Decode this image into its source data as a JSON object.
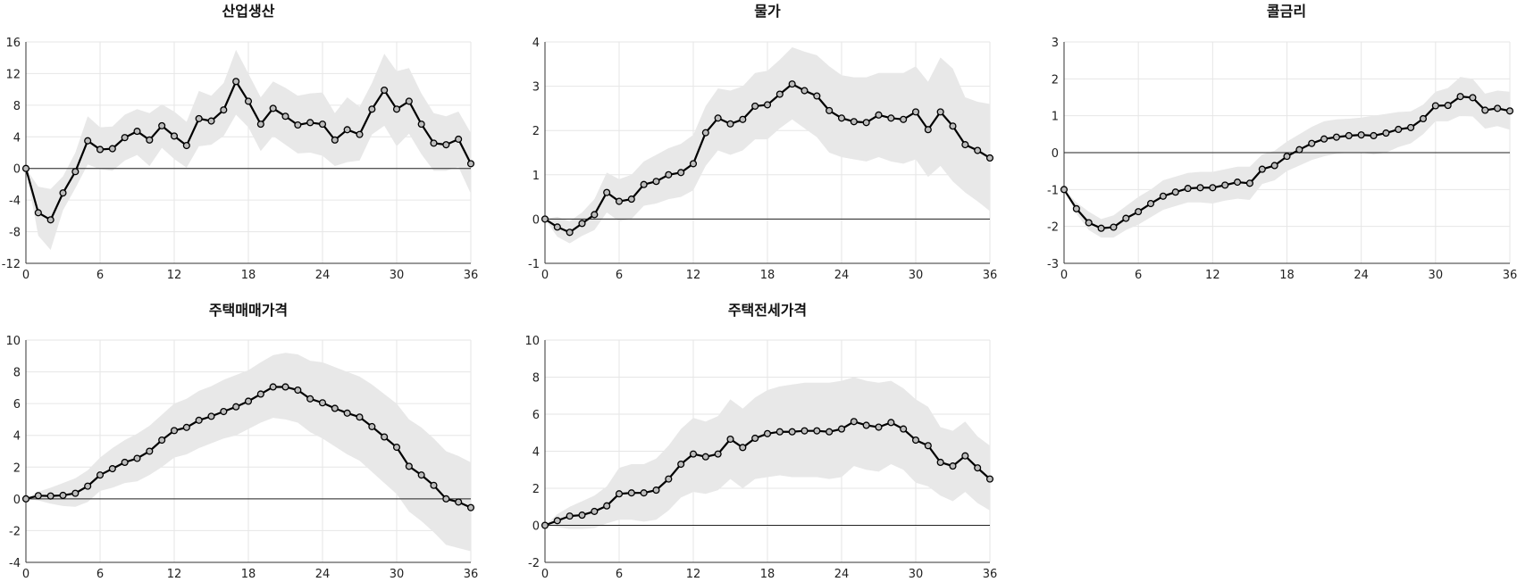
{
  "chart_data": [
    {
      "type": "line",
      "title": "산업생산",
      "xlim": [
        0,
        36
      ],
      "xticks": [
        0,
        6,
        12,
        18,
        24,
        30,
        36
      ],
      "ylim": [
        -12,
        16
      ],
      "yticks": [
        -12,
        -8,
        -4,
        0,
        4,
        8,
        12,
        16
      ],
      "grid": true,
      "series": [
        {
          "name": "response",
          "values": [
            0,
            -5.6,
            -6.5,
            -3.1,
            -0.4,
            3.5,
            2.4,
            2.5,
            3.9,
            4.7,
            3.6,
            5.4,
            4.1,
            2.9,
            6.3,
            6.0,
            7.4,
            11.0,
            8.5,
            5.6,
            7.6,
            6.6,
            5.5,
            5.8,
            5.6,
            3.6,
            4.9,
            4.3,
            7.5,
            9.9,
            7.5,
            8.5,
            5.6,
            3.2,
            3.0,
            3.7,
            0.6
          ]
        },
        {
          "name": "upper",
          "values": [
            0,
            -2.3,
            -2.6,
            -1,
            2,
            6.6,
            5.2,
            5.3,
            6.8,
            7.5,
            7,
            8.1,
            7.2,
            5.9,
            9.8,
            9.2,
            10.8,
            15,
            12,
            9,
            11,
            10.2,
            9.2,
            9.5,
            9.6,
            7,
            9,
            7.8,
            10.8,
            14.5,
            12.3,
            12.7,
            9.5,
            7,
            6.6,
            7.2,
            4.5
          ]
        },
        {
          "name": "lower",
          "values": [
            0,
            -8.5,
            -10.3,
            -5.3,
            -2.5,
            0.5,
            -0.1,
            -0.3,
            1,
            1.7,
            0.3,
            2.6,
            1.2,
            0.1,
            2.8,
            3,
            4.1,
            6.8,
            5.2,
            2.2,
            4.1,
            3,
            1.9,
            2,
            1.6,
            0.3,
            0.8,
            1,
            4.3,
            5.4,
            2.8,
            4.4,
            1.8,
            -0.3,
            -0.3,
            0.2,
            -3.2
          ]
        }
      ]
    },
    {
      "type": "line",
      "title": "물가",
      "xlim": [
        0,
        36
      ],
      "xticks": [
        0,
        6,
        12,
        18,
        24,
        30,
        36
      ],
      "ylim": [
        -1,
        4
      ],
      "yticks": [
        -1,
        0,
        1,
        2,
        3,
        4
      ],
      "grid": true,
      "series": [
        {
          "name": "response",
          "values": [
            0,
            -0.18,
            -0.3,
            -0.1,
            0.1,
            0.6,
            0.4,
            0.45,
            0.78,
            0.85,
            1.0,
            1.05,
            1.25,
            1.95,
            2.28,
            2.15,
            2.25,
            2.55,
            2.58,
            2.82,
            3.05,
            2.9,
            2.78,
            2.45,
            2.28,
            2.2,
            2.18,
            2.35,
            2.28,
            2.25,
            2.42,
            2.02,
            2.42,
            2.1,
            1.68,
            1.55,
            1.38
          ]
        },
        {
          "name": "upper",
          "values": [
            0,
            0.05,
            -0.05,
            0.15,
            0.45,
            1.05,
            0.9,
            1.0,
            1.3,
            1.45,
            1.6,
            1.7,
            1.9,
            2.55,
            2.95,
            2.9,
            3.0,
            3.3,
            3.35,
            3.6,
            3.88,
            3.78,
            3.7,
            3.45,
            3.25,
            3.2,
            3.2,
            3.3,
            3.3,
            3.3,
            3.45,
            3.1,
            3.65,
            3.4,
            2.75,
            2.65,
            2.6
          ]
        },
        {
          "name": "lower",
          "values": [
            0,
            -0.4,
            -0.55,
            -0.38,
            -0.25,
            0.15,
            -0.05,
            0.0,
            0.3,
            0.35,
            0.45,
            0.5,
            0.65,
            1.2,
            1.55,
            1.45,
            1.55,
            1.8,
            1.8,
            2.05,
            2.25,
            2.05,
            1.85,
            1.5,
            1.4,
            1.35,
            1.3,
            1.4,
            1.3,
            1.25,
            1.35,
            0.95,
            1.2,
            0.85,
            0.6,
            0.4,
            0.18
          ]
        }
      ]
    },
    {
      "type": "line",
      "title": "콜금리",
      "xlim": [
        0,
        36
      ],
      "xticks": [
        0,
        6,
        12,
        18,
        24,
        30,
        36
      ],
      "ylim": [
        -3,
        3
      ],
      "yticks": [
        -3,
        -2,
        -1,
        0,
        1,
        2,
        3
      ],
      "grid": true,
      "series": [
        {
          "name": "response",
          "values": [
            -1,
            -1.52,
            -1.9,
            -2.05,
            -2.02,
            -1.78,
            -1.6,
            -1.38,
            -1.18,
            -1.07,
            -0.97,
            -0.95,
            -0.95,
            -0.88,
            -0.8,
            -0.83,
            -0.45,
            -0.35,
            -0.1,
            0.08,
            0.25,
            0.37,
            0.42,
            0.46,
            0.48,
            0.46,
            0.53,
            0.63,
            0.68,
            0.92,
            1.27,
            1.28,
            1.52,
            1.49,
            1.15,
            1.2,
            1.13
          ]
        },
        {
          "name": "upper",
          "values": [
            -1,
            -1.35,
            -1.6,
            -1.8,
            -1.7,
            -1.45,
            -1.2,
            -1.0,
            -0.75,
            -0.65,
            -0.55,
            -0.52,
            -0.52,
            -0.45,
            -0.38,
            -0.38,
            -0.05,
            0.05,
            0.3,
            0.5,
            0.7,
            0.85,
            0.9,
            0.92,
            0.95,
            1.0,
            1.05,
            1.1,
            1.12,
            1.3,
            1.65,
            1.75,
            2.05,
            2.0,
            1.6,
            1.68,
            1.65
          ]
        },
        {
          "name": "lower",
          "values": [
            -1,
            -1.65,
            -2.1,
            -2.3,
            -2.3,
            -2.1,
            -1.95,
            -1.75,
            -1.55,
            -1.45,
            -1.35,
            -1.35,
            -1.38,
            -1.3,
            -1.25,
            -1.28,
            -0.85,
            -0.75,
            -0.5,
            -0.35,
            -0.2,
            -0.1,
            -0.03,
            0.0,
            0.0,
            -0.05,
            0.0,
            0.15,
            0.25,
            0.5,
            0.85,
            0.85,
            1.0,
            0.98,
            0.65,
            0.72,
            0.62
          ]
        }
      ]
    },
    {
      "type": "line",
      "title": "주택매매가격",
      "xlim": [
        0,
        36
      ],
      "xticks": [
        0,
        6,
        12,
        18,
        24,
        30,
        36
      ],
      "ylim": [
        -4,
        10
      ],
      "yticks": [
        -4,
        -2,
        0,
        2,
        4,
        6,
        8,
        10
      ],
      "grid": true,
      "series": [
        {
          "name": "response",
          "values": [
            0,
            0.2,
            0.18,
            0.22,
            0.35,
            0.8,
            1.5,
            1.9,
            2.3,
            2.55,
            3.0,
            3.7,
            4.3,
            4.5,
            4.95,
            5.2,
            5.5,
            5.8,
            6.15,
            6.6,
            7.05,
            7.05,
            6.85,
            6.3,
            6.05,
            5.7,
            5.4,
            5.15,
            4.55,
            3.9,
            3.25,
            2.05,
            1.5,
            0.85,
            0.0,
            -0.2,
            -0.55
          ]
        },
        {
          "name": "upper",
          "values": [
            0,
            0.45,
            0.7,
            1.0,
            1.3,
            1.8,
            2.6,
            3.2,
            3.7,
            4.1,
            4.6,
            5.3,
            6.0,
            6.3,
            6.8,
            7.1,
            7.5,
            7.8,
            8.1,
            8.6,
            9.05,
            9.2,
            9.1,
            8.7,
            8.6,
            8.3,
            8.0,
            7.7,
            7.2,
            6.6,
            6.0,
            5.0,
            4.5,
            3.8,
            3.0,
            2.7,
            2.3
          ]
        },
        {
          "name": "lower",
          "values": [
            0,
            -0.1,
            -0.3,
            -0.45,
            -0.5,
            -0.2,
            0.5,
            0.7,
            1.0,
            1.1,
            1.5,
            2.0,
            2.6,
            2.8,
            3.2,
            3.5,
            3.8,
            4.0,
            4.4,
            4.8,
            5.1,
            5.0,
            4.8,
            4.2,
            3.8,
            3.3,
            2.8,
            2.4,
            1.7,
            1.0,
            0.3,
            -0.8,
            -1.4,
            -2.1,
            -2.9,
            -3.1,
            -3.3
          ]
        }
      ]
    },
    {
      "type": "line",
      "title": "주택전세가격",
      "xlim": [
        0,
        36
      ],
      "xticks": [
        0,
        6,
        12,
        18,
        24,
        30,
        36
      ],
      "ylim": [
        -2,
        10
      ],
      "yticks": [
        -2,
        0,
        2,
        4,
        6,
        8,
        10
      ],
      "grid": true,
      "series": [
        {
          "name": "response",
          "values": [
            0,
            0.25,
            0.5,
            0.55,
            0.75,
            1.05,
            1.7,
            1.75,
            1.75,
            1.9,
            2.5,
            3.3,
            3.85,
            3.7,
            3.85,
            4.65,
            4.2,
            4.7,
            4.95,
            5.05,
            5.05,
            5.1,
            5.1,
            5.05,
            5.2,
            5.6,
            5.4,
            5.3,
            5.55,
            5.2,
            4.6,
            4.3,
            3.4,
            3.2,
            3.75,
            3.1,
            2.5
          ]
        },
        {
          "name": "upper",
          "values": [
            0,
            0.6,
            1.0,
            1.3,
            1.6,
            2.1,
            3.1,
            3.3,
            3.3,
            3.6,
            4.3,
            5.2,
            5.8,
            5.6,
            5.9,
            6.8,
            6.3,
            6.9,
            7.3,
            7.5,
            7.6,
            7.7,
            7.7,
            7.7,
            7.8,
            8.0,
            7.8,
            7.7,
            7.8,
            7.4,
            6.8,
            6.4,
            5.3,
            5.1,
            5.6,
            4.8,
            4.3
          ]
        },
        {
          "name": "lower",
          "values": [
            0,
            -0.1,
            -0.2,
            -0.2,
            -0.15,
            0.1,
            0.3,
            0.3,
            0.2,
            0.3,
            0.8,
            1.5,
            1.8,
            1.7,
            1.9,
            2.5,
            2.0,
            2.5,
            2.6,
            2.7,
            2.6,
            2.6,
            2.6,
            2.5,
            2.6,
            3.2,
            3.0,
            2.9,
            3.3,
            3.0,
            2.3,
            2.1,
            1.6,
            1.3,
            1.8,
            1.2,
            0.8
          ]
        }
      ]
    }
  ]
}
